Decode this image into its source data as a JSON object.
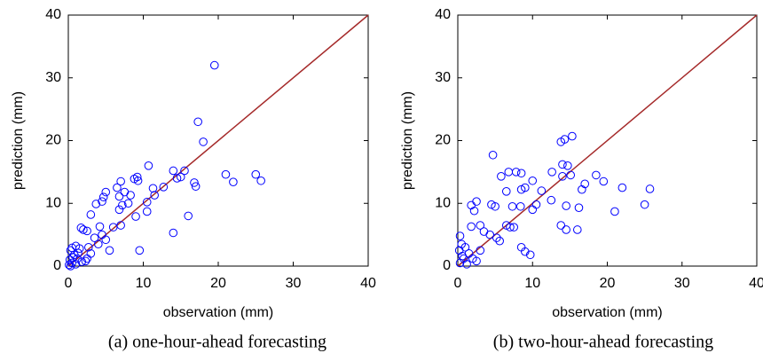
{
  "chart_data": [
    {
      "type": "scatter",
      "caption": "(a) one-hour-ahead forecasting",
      "xlabel": "observation (mm)",
      "ylabel": "prediction (mm)",
      "xlim": [
        0,
        40
      ],
      "ylim": [
        0,
        40
      ],
      "xticks": [
        0,
        10,
        20,
        30,
        40
      ],
      "yticks": [
        0,
        10,
        20,
        30,
        40
      ],
      "diagonal": true,
      "diagonal_color": "#a52a2a",
      "series": [
        {
          "color": "#0000ff",
          "x": [
            19.5,
            17.3,
            18,
            10.7,
            15.5,
            14,
            14.5,
            15,
            21,
            25,
            25.7,
            22,
            16.8,
            17,
            12.7,
            11.3,
            9.3,
            8.8,
            9.2,
            7,
            6.5,
            7.5,
            5,
            4.7,
            6.8,
            8.3,
            3.7,
            4.5,
            8,
            10.5,
            11.5,
            7.2,
            6.8,
            9,
            10.5,
            16,
            14,
            9.5,
            5.5,
            3,
            2,
            2.5,
            1.7,
            6,
            7,
            4.5,
            3.5,
            5,
            4,
            2.7,
            3,
            1.5,
            1,
            0.5,
            0.3,
            0.8,
            1.2,
            0.2,
            0.5,
            0.1,
            1.8,
            2.5,
            1,
            0.3,
            0.6,
            2.3,
            1.3,
            4.2
          ],
          "values": [
            32,
            23,
            19.8,
            16,
            15.2,
            15.2,
            14,
            14.2,
            14.6,
            14.6,
            13.6,
            13.4,
            13.3,
            12.7,
            12.6,
            12.4,
            13.6,
            13.9,
            14.2,
            13.5,
            12.5,
            11.8,
            11.8,
            11,
            11.1,
            11.3,
            9.9,
            10.3,
            10,
            10.2,
            11.3,
            9.7,
            9,
            7.9,
            8.7,
            8,
            5.3,
            2.5,
            2.5,
            8.2,
            5.8,
            5.6,
            6.1,
            6.2,
            6.5,
            5,
            4.5,
            4.2,
            3.5,
            3,
            2,
            2.8,
            3.2,
            2.9,
            2.5,
            1.8,
            1.2,
            1,
            0.5,
            0.2,
            0.7,
            1.2,
            0.3,
            0,
            1.4,
            0.8,
            2.1,
            6.3
          ]
        }
      ]
    },
    {
      "type": "scatter",
      "caption": "(b) two-hour-ahead forecasting",
      "xlabel": "observation (mm)",
      "ylabel": "prediction (mm)",
      "xlim": [
        0,
        40
      ],
      "ylim": [
        0,
        40
      ],
      "xticks": [
        0,
        10,
        20,
        30,
        40
      ],
      "yticks": [
        0,
        10,
        20,
        30,
        40
      ],
      "diagonal": true,
      "diagonal_color": "#a52a2a",
      "series": [
        {
          "color": "#0000ff",
          "x": [
            4.7,
            15.3,
            14.3,
            13.8,
            14,
            14.7,
            6.8,
            8.5,
            7.8,
            5.8,
            12.6,
            19.5,
            18.5,
            17,
            16.6,
            15.1,
            14,
            11.2,
            9,
            8.5,
            6.5,
            2.5,
            1.8,
            2.2,
            4.5,
            5,
            7.3,
            8.4,
            10,
            10.5,
            12.5,
            14.5,
            16.2,
            21,
            22,
            25,
            25.7,
            13.8,
            14.5,
            16,
            10,
            6.5,
            7,
            7.5,
            8.5,
            9,
            9.7,
            5.6,
            5.2,
            3.5,
            3,
            1.8,
            4.3,
            0.5,
            0.3,
            1,
            1.5,
            0.2,
            0.8,
            0.3,
            2,
            2.5,
            0.6,
            3,
            1.2
          ],
          "values": [
            17.7,
            20.7,
            20.2,
            19.8,
            16.2,
            16,
            15,
            14.8,
            15,
            14.3,
            15,
            13.5,
            14.5,
            13.1,
            12.2,
            14.5,
            14.3,
            12,
            12.5,
            12.2,
            11.9,
            10.3,
            9.7,
            8.8,
            9.8,
            9.5,
            9.5,
            9.5,
            9,
            9.8,
            10.5,
            9.6,
            9.3,
            8.7,
            12.5,
            9.8,
            12.3,
            6.5,
            5.8,
            5.8,
            13.6,
            6.5,
            6.2,
            6.2,
            3,
            2.3,
            1.8,
            4,
            4.5,
            5.5,
            6.5,
            6.3,
            5,
            3.5,
            4.8,
            3,
            2,
            2.5,
            1.2,
            0.5,
            1.2,
            0.8,
            1.6,
            2.5,
            0.3
          ]
        }
      ]
    }
  ]
}
